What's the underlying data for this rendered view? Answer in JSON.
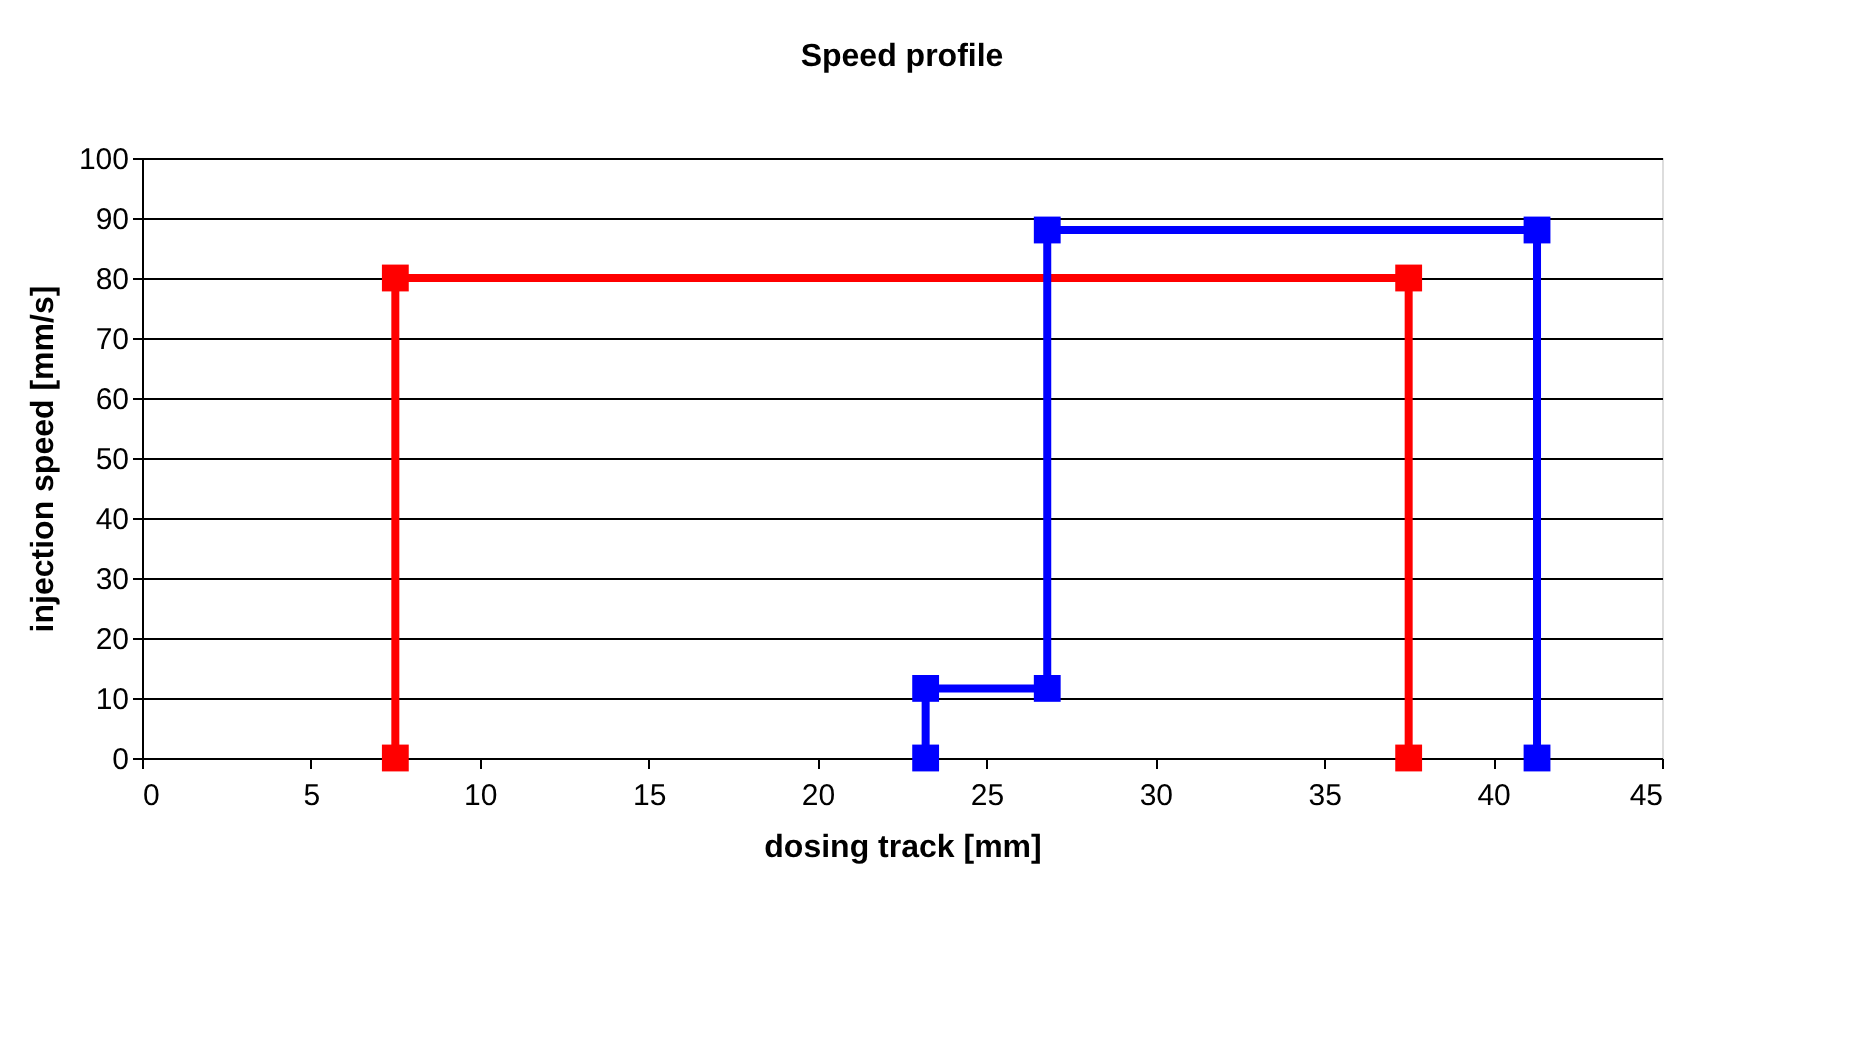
{
  "chart_data": {
    "type": "line",
    "title": "Speed profile",
    "xlabel": "dosing track [mm]",
    "ylabel": "injection speed [mm/s]",
    "series": [
      {
        "color": "#ff0000",
        "x": [
          7.5,
          7.5,
          37.5,
          37.5
        ],
        "values": [
          0,
          80,
          80,
          0
        ]
      },
      {
        "color": "#0000ff",
        "x": [
          23.2,
          23.2,
          26.8,
          26.8,
          41.3,
          41.3
        ],
        "values": [
          0,
          11.6,
          11.6,
          88,
          88,
          0
        ]
      }
    ],
    "xlim": [
      0,
      45
    ],
    "xticks": [
      0,
      5,
      10,
      15,
      20,
      25,
      30,
      35,
      40,
      45
    ],
    "ylim": [
      0,
      100
    ],
    "yticks": [
      0,
      10,
      20,
      30,
      40,
      50,
      60,
      70,
      80,
      90,
      100
    ],
    "grid": "y",
    "legend": false,
    "marker": "square",
    "line_style": "solid"
  }
}
